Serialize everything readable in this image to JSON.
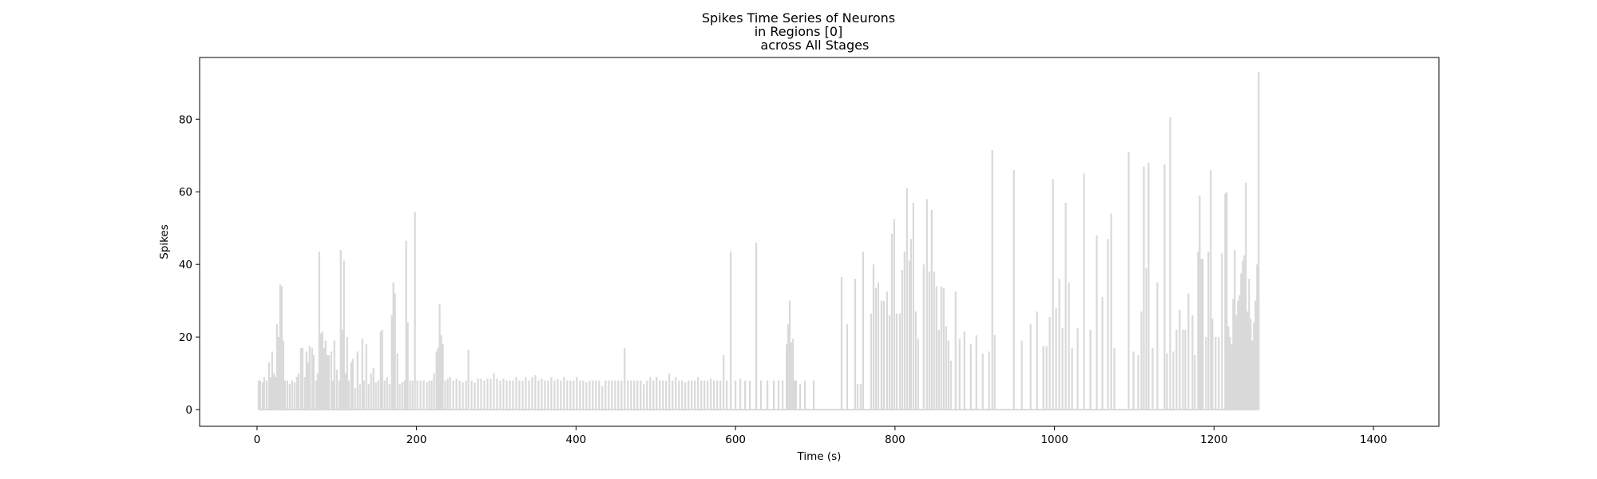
{
  "chart_data": {
    "type": "line",
    "title_lines": [
      "Spikes Time Series of Neurons",
      "in Regions [0]",
      "        across All Stages"
    ],
    "xlabel": "Time (s)",
    "ylabel": "Spikes",
    "xlim": [
      -72,
      1482
    ],
    "ylim": [
      -4.6,
      97
    ],
    "xticks": [
      0,
      200,
      400,
      600,
      800,
      1000,
      1200,
      1400
    ],
    "yticks": [
      0,
      20,
      40,
      60,
      80
    ],
    "grid": false,
    "line_color": "#d9d9d9",
    "spikes": [
      [
        2,
        8
      ],
      [
        4,
        8
      ],
      [
        7,
        7.5
      ],
      [
        9,
        9
      ],
      [
        12,
        8
      ],
      [
        15,
        13
      ],
      [
        17,
        9
      ],
      [
        19,
        16
      ],
      [
        21,
        10
      ],
      [
        23,
        9
      ],
      [
        25,
        23.5
      ],
      [
        27,
        20
      ],
      [
        29,
        34.5
      ],
      [
        31,
        34
      ],
      [
        33,
        19
      ],
      [
        35,
        8
      ],
      [
        38,
        8
      ],
      [
        41,
        7
      ],
      [
        44,
        8
      ],
      [
        47,
        7.5
      ],
      [
        50,
        9
      ],
      [
        52,
        10
      ],
      [
        55,
        17
      ],
      [
        57,
        17
      ],
      [
        60,
        9
      ],
      [
        62,
        16
      ],
      [
        64,
        13
      ],
      [
        66,
        17.5
      ],
      [
        69,
        17
      ],
      [
        71,
        15
      ],
      [
        74,
        8
      ],
      [
        76,
        10
      ],
      [
        78,
        43.5
      ],
      [
        80,
        21
      ],
      [
        82,
        21.5
      ],
      [
        84,
        17
      ],
      [
        86,
        19
      ],
      [
        88,
        15
      ],
      [
        90,
        15
      ],
      [
        93,
        16
      ],
      [
        95,
        8
      ],
      [
        97,
        19
      ],
      [
        100,
        11
      ],
      [
        103,
        8
      ],
      [
        105,
        44
      ],
      [
        107,
        22
      ],
      [
        109,
        41
      ],
      [
        111,
        10
      ],
      [
        113,
        20
      ],
      [
        115,
        8
      ],
      [
        118,
        13
      ],
      [
        120,
        14
      ],
      [
        123,
        6
      ],
      [
        126,
        16
      ],
      [
        129,
        7
      ],
      [
        132,
        19.5
      ],
      [
        134,
        8
      ],
      [
        137,
        18
      ],
      [
        140,
        7
      ],
      [
        143,
        10
      ],
      [
        146,
        11.5
      ],
      [
        149,
        7.5
      ],
      [
        152,
        8
      ],
      [
        155,
        21.5
      ],
      [
        157,
        22
      ],
      [
        160,
        8
      ],
      [
        163,
        9
      ],
      [
        166,
        7
      ],
      [
        169,
        26
      ],
      [
        171,
        35
      ],
      [
        173,
        32
      ],
      [
        176,
        15.5
      ],
      [
        179,
        7
      ],
      [
        182,
        7.5
      ],
      [
        185,
        8
      ],
      [
        187,
        46.5
      ],
      [
        189,
        24
      ],
      [
        192,
        8
      ],
      [
        195,
        8
      ],
      [
        198,
        54.5
      ],
      [
        201,
        8
      ],
      [
        205,
        8
      ],
      [
        209,
        8
      ],
      [
        213,
        7.5
      ],
      [
        216,
        8
      ],
      [
        219,
        8
      ],
      [
        222,
        10
      ],
      [
        225,
        16
      ],
      [
        227,
        17
      ],
      [
        229,
        29
      ],
      [
        231,
        20.5
      ],
      [
        233,
        18
      ],
      [
        236,
        8
      ],
      [
        239,
        8.5
      ],
      [
        242,
        9
      ],
      [
        246,
        8
      ],
      [
        250,
        8.5
      ],
      [
        254,
        8
      ],
      [
        258,
        7.5
      ],
      [
        262,
        8
      ],
      [
        265,
        16.5
      ],
      [
        269,
        8
      ],
      [
        273,
        7.5
      ],
      [
        277,
        8.5
      ],
      [
        281,
        8.5
      ],
      [
        285,
        8
      ],
      [
        289,
        8.5
      ],
      [
        293,
        8.5
      ],
      [
        297,
        10
      ],
      [
        301,
        8.5
      ],
      [
        305,
        8
      ],
      [
        309,
        8.5
      ],
      [
        313,
        8
      ],
      [
        317,
        8
      ],
      [
        321,
        8
      ],
      [
        325,
        9
      ],
      [
        329,
        8
      ],
      [
        333,
        8
      ],
      [
        337,
        9
      ],
      [
        341,
        8
      ],
      [
        345,
        9
      ],
      [
        349,
        9.5
      ],
      [
        353,
        8
      ],
      [
        357,
        8.5
      ],
      [
        361,
        8
      ],
      [
        365,
        8
      ],
      [
        369,
        9
      ],
      [
        373,
        8
      ],
      [
        377,
        8.5
      ],
      [
        381,
        8
      ],
      [
        385,
        9
      ],
      [
        389,
        8
      ],
      [
        393,
        8
      ],
      [
        397,
        8
      ],
      [
        401,
        9
      ],
      [
        405,
        8
      ],
      [
        409,
        8
      ],
      [
        413,
        7.5
      ],
      [
        417,
        8
      ],
      [
        421,
        8
      ],
      [
        425,
        8
      ],
      [
        429,
        8
      ],
      [
        433,
        6.5
      ],
      [
        437,
        8
      ],
      [
        441,
        8
      ],
      [
        445,
        8
      ],
      [
        449,
        8
      ],
      [
        453,
        8
      ],
      [
        457,
        8
      ],
      [
        461,
        17
      ],
      [
        465,
        8
      ],
      [
        469,
        8
      ],
      [
        473,
        8
      ],
      [
        477,
        8
      ],
      [
        481,
        8
      ],
      [
        485,
        7
      ],
      [
        489,
        8
      ],
      [
        493,
        9
      ],
      [
        497,
        8
      ],
      [
        501,
        9
      ],
      [
        505,
        8
      ],
      [
        509,
        8
      ],
      [
        513,
        8
      ],
      [
        517,
        10
      ],
      [
        521,
        8
      ],
      [
        525,
        9
      ],
      [
        529,
        8
      ],
      [
        533,
        8
      ],
      [
        537,
        7.5
      ],
      [
        541,
        8
      ],
      [
        545,
        8
      ],
      [
        549,
        8
      ],
      [
        553,
        9
      ],
      [
        557,
        8
      ],
      [
        561,
        8
      ],
      [
        565,
        8
      ],
      [
        569,
        8.5
      ],
      [
        573,
        8
      ],
      [
        577,
        8
      ],
      [
        581,
        8
      ],
      [
        585,
        15
      ],
      [
        589,
        8
      ],
      [
        594,
        43.5
      ],
      [
        600,
        8
      ],
      [
        606,
        8.5
      ],
      [
        612,
        8
      ],
      [
        618,
        8
      ],
      [
        626,
        46
      ],
      [
        632,
        8
      ],
      [
        640,
        8
      ],
      [
        648,
        8
      ],
      [
        654,
        8
      ],
      [
        659,
        8
      ],
      [
        664,
        18
      ],
      [
        666,
        23.5
      ],
      [
        668,
        30
      ],
      [
        670,
        18.5
      ],
      [
        672,
        19.5
      ],
      [
        674,
        8
      ],
      [
        676,
        8
      ],
      [
        681,
        7
      ],
      [
        687,
        8
      ],
      [
        698,
        8
      ],
      [
        733,
        36.5
      ],
      [
        740,
        23.5
      ],
      [
        750,
        36
      ],
      [
        753,
        7
      ],
      [
        757,
        7
      ],
      [
        760,
        43.5
      ],
      [
        770,
        26.5
      ],
      [
        773,
        40
      ],
      [
        776,
        33.5
      ],
      [
        779,
        35
      ],
      [
        783,
        30
      ],
      [
        786,
        30
      ],
      [
        790,
        32.5
      ],
      [
        793,
        26
      ],
      [
        796,
        48.5
      ],
      [
        799,
        52.5
      ],
      [
        802,
        26.5
      ],
      [
        806,
        26.5
      ],
      [
        809,
        38.5
      ],
      [
        812,
        43.5
      ],
      [
        815,
        61
      ],
      [
        818,
        41
      ],
      [
        820,
        47
      ],
      [
        823,
        57
      ],
      [
        826,
        27
      ],
      [
        829,
        19.5
      ],
      [
        836,
        40
      ],
      [
        840,
        58
      ],
      [
        843,
        38
      ],
      [
        846,
        55
      ],
      [
        849,
        38
      ],
      [
        852,
        34
      ],
      [
        855,
        22
      ],
      [
        858,
        34
      ],
      [
        861,
        33.5
      ],
      [
        864,
        23
      ],
      [
        867,
        19
      ],
      [
        870,
        13.5
      ],
      [
        876,
        32.5
      ],
      [
        881,
        19.5
      ],
      [
        887,
        21.5
      ],
      [
        895,
        18
      ],
      [
        902,
        20.5
      ],
      [
        910,
        15.5
      ],
      [
        918,
        16
      ],
      [
        922,
        71.5
      ],
      [
        925,
        20.5
      ],
      [
        949,
        66
      ],
      [
        959,
        19
      ],
      [
        970,
        23.5
      ],
      [
        978,
        27
      ],
      [
        986,
        17.5
      ],
      [
        990,
        17.5
      ],
      [
        994,
        25.5
      ],
      [
        998,
        63.5
      ],
      [
        1002,
        28
      ],
      [
        1006,
        36
      ],
      [
        1010,
        22.5
      ],
      [
        1014,
        57
      ],
      [
        1018,
        35
      ],
      [
        1022,
        17
      ],
      [
        1029,
        22.5
      ],
      [
        1037,
        65
      ],
      [
        1045,
        22
      ],
      [
        1053,
        48
      ],
      [
        1060,
        31
      ],
      [
        1067,
        47
      ],
      [
        1071,
        54
      ],
      [
        1075,
        17
      ],
      [
        1093,
        71
      ],
      [
        1099,
        16
      ],
      [
        1105,
        15
      ],
      [
        1109,
        27
      ],
      [
        1112,
        67
      ],
      [
        1115,
        39
      ],
      [
        1118,
        68
      ],
      [
        1123,
        17
      ],
      [
        1129,
        35
      ],
      [
        1138,
        67.5
      ],
      [
        1141,
        15.5
      ],
      [
        1145,
        80.5
      ],
      [
        1149,
        16
      ],
      [
        1153,
        22
      ],
      [
        1157,
        27.5
      ],
      [
        1161,
        22
      ],
      [
        1164,
        22
      ],
      [
        1168,
        32
      ],
      [
        1173,
        26
      ],
      [
        1176,
        15
      ],
      [
        1180,
        43.5
      ],
      [
        1182,
        59
      ],
      [
        1184,
        41.5
      ],
      [
        1186,
        41.5
      ],
      [
        1190,
        20
      ],
      [
        1193,
        43.5
      ],
      [
        1196,
        66
      ],
      [
        1198,
        25
      ],
      [
        1202,
        20
      ],
      [
        1206,
        20
      ],
      [
        1210,
        43
      ],
      [
        1214,
        59.5
      ],
      [
        1216,
        60
      ],
      [
        1218,
        23
      ],
      [
        1220,
        20
      ],
      [
        1222,
        18
      ],
      [
        1224,
        30.5
      ],
      [
        1226,
        44
      ],
      [
        1228,
        26
      ],
      [
        1230,
        30
      ],
      [
        1232,
        31.5
      ],
      [
        1234,
        37.5
      ],
      [
        1236,
        41
      ],
      [
        1238,
        42.5
      ],
      [
        1240,
        62.5
      ],
      [
        1242,
        27
      ],
      [
        1244,
        36
      ],
      [
        1246,
        25
      ],
      [
        1248,
        19
      ],
      [
        1250,
        24
      ],
      [
        1252,
        30
      ],
      [
        1254,
        40
      ],
      [
        1256,
        93
      ]
    ]
  }
}
